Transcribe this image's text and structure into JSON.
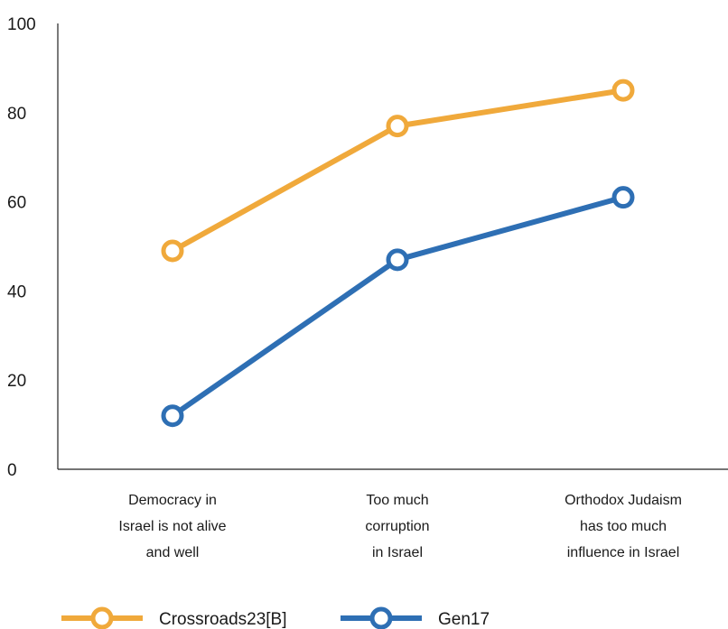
{
  "chart_data": {
    "type": "line",
    "categories": [
      [
        "Democracy in",
        "Israel is not alive",
        "and well"
      ],
      [
        "Too much",
        "corruption",
        "in Israel"
      ],
      [
        "Orthodox Judaism",
        "has too much",
        "influence in Israel"
      ]
    ],
    "series": [
      {
        "name": "Crossroads23[B]",
        "values": [
          49,
          77,
          85
        ],
        "color": "#f0a93b"
      },
      {
        "name": "Gen17",
        "values": [
          12,
          47,
          61
        ],
        "color": "#2e6fb4"
      }
    ],
    "y_ticks": [
      0,
      20,
      40,
      60,
      80,
      100
    ],
    "ylim": [
      0,
      100
    ],
    "title": "",
    "xlabel": "",
    "ylabel": "",
    "grid": false,
    "legend_position": "bottom-left"
  }
}
